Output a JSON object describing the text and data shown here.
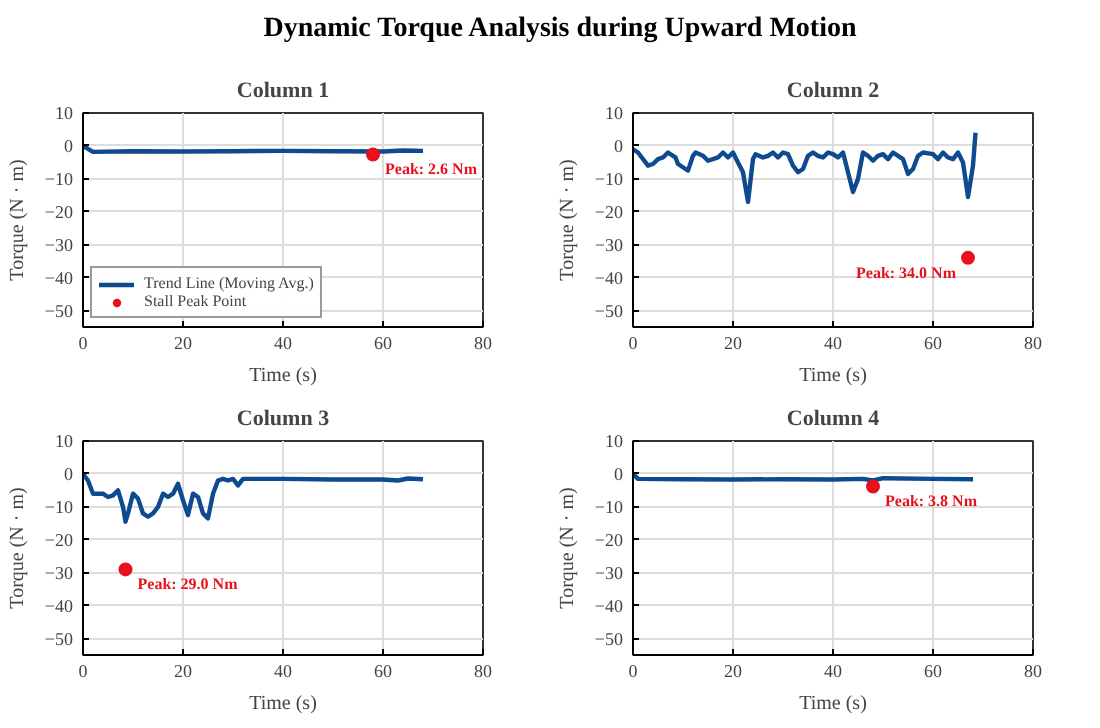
{
  "chart_data": [
    {
      "type": "other",
      "title": "Dynamic Torque Analysis during Upward Motion"
    },
    {
      "type": "line",
      "title": "Column 1",
      "xlabel": "Time (s)",
      "ylabel": "Torque (N · m)",
      "xlim": [
        0,
        80
      ],
      "ylim": [
        -55,
        10
      ],
      "xticks": [
        0,
        20,
        40,
        60,
        80
      ],
      "yticks": [
        -50,
        -40,
        -30,
        -20,
        -10,
        0,
        10
      ],
      "grid": true,
      "legend": "bottom left",
      "line_style": "solid",
      "series": [
        {
          "name": "Trend Line (Moving Avg.)",
          "type": "line",
          "color": "#0d4a8f",
          "x": [
            0,
            2,
            10,
            20,
            30,
            40,
            50,
            60,
            64,
            68
          ],
          "values": [
            0,
            -1.8,
            -1.6,
            -1.7,
            -1.6,
            -1.5,
            -1.6,
            -1.7,
            -1.4,
            -1.5
          ]
        },
        {
          "name": "Stall Peak Point",
          "type": "scatter",
          "color": "#e8101a",
          "x": [
            58
          ],
          "values": [
            -2.6
          ]
        }
      ],
      "annotations": [
        {
          "text": "Peak: 2.6 Nm",
          "x": 58,
          "y": -2.6
        }
      ]
    },
    {
      "type": "line",
      "title": "Column 2",
      "xlabel": "Time (s)",
      "ylabel": "Torque (N · m)",
      "xlim": [
        0,
        80
      ],
      "ylim": [
        -55,
        10
      ],
      "xticks": [
        0,
        20,
        40,
        60,
        80
      ],
      "yticks": [
        -50,
        -40,
        -30,
        -20,
        -10,
        0,
        10
      ],
      "grid": true,
      "line_style": "solid",
      "series": [
        {
          "type": "line",
          "color": "#0d4a8f",
          "x": [
            0,
            1,
            3,
            4,
            5,
            6,
            7,
            8,
            8.5,
            9,
            10.5,
            11,
            12,
            12.5,
            14,
            15,
            16,
            17,
            18,
            19,
            20,
            21,
            22,
            23,
            24,
            24.5,
            26,
            27,
            28,
            29,
            30,
            31,
            32,
            33,
            34,
            35,
            36,
            37,
            38,
            39,
            40,
            41,
            42,
            43,
            44,
            45,
            46,
            47,
            48,
            49,
            50,
            51,
            52,
            53,
            54,
            55,
            56,
            57,
            58,
            60,
            61,
            62,
            63,
            64,
            65,
            66,
            67,
            68,
            68.5
          ],
          "values": [
            -1,
            -2,
            -6,
            -5.5,
            -4,
            -3.5,
            -2,
            -3,
            -3.5,
            -5.5,
            -7,
            -7.5,
            -3,
            -2,
            -3,
            -4.5,
            -4,
            -3.5,
            -2,
            -3.5,
            -2,
            -5,
            -8,
            -17,
            -4,
            -2.5,
            -3.5,
            -3,
            -2,
            -3.5,
            -2,
            -2.5,
            -6,
            -8,
            -7,
            -3,
            -2,
            -3,
            -3.5,
            -2,
            -2.5,
            -3.5,
            -2,
            -8,
            -14,
            -10,
            -2,
            -3,
            -4.5,
            -3,
            -2.5,
            -4,
            -2,
            -3,
            -4,
            -8.5,
            -7,
            -3,
            -2,
            -2.5,
            -4,
            -2,
            -3.5,
            -4,
            -2,
            -5,
            -15.5,
            -6,
            4
          ]
        },
        {
          "type": "scatter",
          "color": "#e8101a",
          "x": [
            67
          ],
          "values": [
            -34
          ]
        }
      ],
      "annotations": [
        {
          "text": "Peak: 34.0 Nm",
          "x": 67,
          "y": -34
        }
      ]
    },
    {
      "type": "line",
      "title": "Column 3",
      "xlabel": "Time (s)",
      "ylabel": "Torque (N · m)",
      "xlim": [
        0,
        80
      ],
      "ylim": [
        -55,
        10
      ],
      "xticks": [
        0,
        20,
        40,
        60,
        80
      ],
      "yticks": [
        -50,
        -40,
        -30,
        -20,
        -10,
        0,
        10
      ],
      "grid": true,
      "line_style": "solid",
      "series": [
        {
          "type": "line",
          "color": "#0d4a8f",
          "x": [
            0,
            1,
            2,
            4,
            5,
            6,
            7,
            8,
            8.5,
            9,
            10,
            11,
            12,
            13,
            14,
            15,
            16,
            17,
            18,
            19,
            20,
            21,
            22,
            23,
            24,
            25,
            26,
            27,
            28,
            29,
            30,
            31,
            32,
            40,
            50,
            60,
            63,
            65,
            68
          ],
          "values": [
            0,
            -2,
            -6,
            -6,
            -7,
            -6.5,
            -5,
            -10,
            -14.5,
            -12,
            -6,
            -7.5,
            -12,
            -13,
            -12,
            -10,
            -6,
            -7,
            -6,
            -3,
            -8,
            -12.5,
            -6,
            -7,
            -12,
            -13.5,
            -6,
            -2,
            -1.5,
            -2,
            -1.5,
            -3.5,
            -1.5,
            -1.5,
            -1.7,
            -1.7,
            -2,
            -1.4,
            -1.6
          ]
        },
        {
          "type": "scatter",
          "color": "#e8101a",
          "x": [
            8.5
          ],
          "values": [
            -29
          ]
        }
      ],
      "annotations": [
        {
          "text": "Peak: 29.0 Nm",
          "x": 8.5,
          "y": -29
        }
      ]
    },
    {
      "type": "line",
      "title": "Column 4",
      "xlabel": "Time (s)",
      "ylabel": "Torque (N · m)",
      "xlim": [
        0,
        80
      ],
      "ylim": [
        -55,
        10
      ],
      "xticks": [
        0,
        20,
        40,
        60,
        80
      ],
      "yticks": [
        -50,
        -40,
        -30,
        -20,
        -10,
        0,
        10
      ],
      "grid": true,
      "line_style": "solid",
      "series": [
        {
          "type": "line",
          "color": "#0d4a8f",
          "x": [
            0,
            1,
            10,
            20,
            30,
            40,
            46,
            48,
            50,
            60,
            68
          ],
          "values": [
            0,
            -1.5,
            -1.6,
            -1.7,
            -1.6,
            -1.7,
            -1.5,
            -2,
            -1.3,
            -1.5,
            -1.6
          ]
        },
        {
          "type": "scatter",
          "color": "#e8101a",
          "x": [
            48
          ],
          "values": [
            -3.8
          ]
        }
      ],
      "annotations": [
        {
          "text": "Peak: 3.8 Nm",
          "x": 48,
          "y": -3.8
        }
      ]
    }
  ]
}
